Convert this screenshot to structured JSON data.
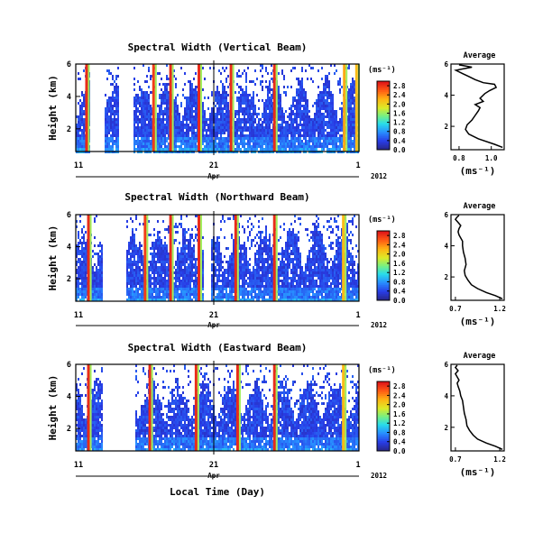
{
  "chart_data": [
    {
      "type": "heatmap",
      "title": "Spectral Width (Vertical Beam)",
      "ylabel": "Height (km)",
      "yticks": [
        "2",
        "4",
        "6"
      ],
      "ylim": [
        0.6,
        6
      ],
      "xtick_labels": [
        "11",
        "21",
        "1"
      ],
      "x_month": "Apr",
      "x_year": "2012",
      "colorbar": {
        "unit": "(ms⁻¹)",
        "ticks": [
          "0.0",
          "0.4",
          "0.8",
          "1.2",
          "1.6",
          "2.0",
          "2.4",
          "2.8"
        ],
        "range": [
          0,
          3.0
        ]
      },
      "gap_days": [
        1,
        2,
        3,
        4
      ],
      "spikes": [
        {
          "day": 1,
          "value": 2.9
        },
        {
          "day": 8.1,
          "value": 2.8
        },
        {
          "day": 9.9,
          "value": 2.9
        },
        {
          "day": 12.9,
          "value": 2.9
        },
        {
          "day": 16.3,
          "value": 2.9
        },
        {
          "day": 20.9,
          "value": 2.9
        },
        {
          "day": 28.3,
          "value": 2.3
        },
        {
          "day": 29.6,
          "value": 2.2
        }
      ]
    },
    {
      "type": "heatmap",
      "title": "Spectral Width (Northward Beam)",
      "ylabel": "Height (km)",
      "yticks": [
        "2",
        "4",
        "6"
      ],
      "ylim": [
        0.6,
        6
      ],
      "xtick_labels": [
        "11",
        "21",
        "1"
      ],
      "x_month": "Apr",
      "x_year": "2012",
      "colorbar": {
        "unit": "(ms⁻¹)",
        "ticks": [
          "0.0",
          "0.4",
          "0.8",
          "1.2",
          "1.6",
          "2.0",
          "2.4",
          "2.8"
        ],
        "range": [
          0,
          3.0
        ]
      },
      "gap_days": [
        1.8,
        3.5,
        9,
        9.5
      ],
      "spikes": [
        {
          "day": 1.2,
          "value": 2.9
        },
        {
          "day": 7.2,
          "value": 2.8
        },
        {
          "day": 9.9,
          "value": 2.9
        },
        {
          "day": 12.9,
          "value": 2.9
        },
        {
          "day": 16.8,
          "value": 2.9
        },
        {
          "day": 20.9,
          "value": 2.9
        },
        {
          "day": 28.2,
          "value": 2.2
        }
      ]
    },
    {
      "type": "heatmap",
      "title": "Spectral Width (Eastward Beam)",
      "ylabel": "Height (km)",
      "yticks": [
        "2",
        "4",
        "6"
      ],
      "ylim": [
        0.6,
        6
      ],
      "xtick_labels": [
        "11",
        "21",
        "1"
      ],
      "x_month": "Apr",
      "x_year": "2012",
      "xlabel": "Local Time (Day)",
      "colorbar": {
        "unit": "(ms⁻¹)",
        "ticks": [
          "0.0",
          "0.4",
          "0.8",
          "1.2",
          "1.6",
          "2.0",
          "2.4",
          "2.8"
        ],
        "range": [
          0,
          3.0
        ]
      },
      "gap_days": [
        1.8,
        4.2
      ],
      "spikes": [
        {
          "day": 1.2,
          "value": 2.9
        },
        {
          "day": 7.7,
          "value": 2.9
        },
        {
          "day": 12.6,
          "value": 2.9
        },
        {
          "day": 17.0,
          "value": 2.9
        },
        {
          "day": 20.9,
          "value": 2.9
        },
        {
          "day": 28.2,
          "value": 2.2
        }
      ]
    },
    {
      "type": "line",
      "title": "Average",
      "xlabel": "(ms⁻¹)",
      "xticks": [
        "0.8",
        "1.0"
      ],
      "xlim": [
        0.75,
        1.08
      ],
      "yticks": [
        "2",
        "4",
        "6"
      ],
      "ylim": [
        0.5,
        6
      ],
      "x": [
        1.07,
        1.02,
        0.92,
        0.86,
        0.84,
        0.85,
        0.88,
        0.9,
        0.92,
        0.93,
        0.9,
        0.95,
        0.93,
        0.96,
        0.99,
        1.03,
        1.02,
        0.95,
        0.9,
        0.86,
        0.82,
        0.78,
        0.88,
        0.8
      ],
      "y": [
        0.65,
        0.85,
        1.2,
        1.5,
        1.8,
        2.1,
        2.4,
        2.7,
        3.0,
        3.2,
        3.4,
        3.6,
        3.8,
        4.1,
        4.3,
        4.5,
        4.7,
        4.8,
        5.0,
        5.2,
        5.4,
        5.6,
        5.8,
        5.95
      ]
    },
    {
      "type": "line",
      "title": "Average",
      "xlabel": "(ms⁻¹)",
      "xticks": [
        "0.7",
        "1.2"
      ],
      "xlim": [
        0.65,
        1.25
      ],
      "yticks": [
        "2",
        "4",
        "6"
      ],
      "ylim": [
        0.5,
        6
      ],
      "x": [
        1.23,
        1.15,
        1.05,
        0.95,
        0.88,
        0.84,
        0.81,
        0.8,
        0.82,
        0.81,
        0.79,
        0.78,
        0.78,
        0.76,
        0.74,
        0.73,
        0.74,
        0.76,
        0.73,
        0.7,
        0.72,
        0.74
      ],
      "y": [
        0.6,
        0.8,
        1.0,
        1.25,
        1.5,
        1.8,
        2.1,
        2.4,
        2.8,
        3.2,
        3.6,
        4.0,
        4.3,
        4.5,
        4.7,
        4.9,
        5.1,
        5.3,
        5.5,
        5.7,
        5.85,
        5.95
      ]
    },
    {
      "type": "line",
      "title": "Average",
      "xlabel": "(ms⁻¹)",
      "xticks": [
        "0.7",
        "1.2"
      ],
      "xlim": [
        0.65,
        1.25
      ],
      "yticks": [
        "2",
        "4",
        "6"
      ],
      "ylim": [
        0.5,
        6
      ],
      "x": [
        1.23,
        1.15,
        1.05,
        0.95,
        0.9,
        0.86,
        0.83,
        0.82,
        0.8,
        0.79,
        0.78,
        0.76,
        0.75,
        0.73,
        0.72,
        0.74,
        0.72,
        0.7,
        0.73,
        0.7,
        0.72
      ],
      "y": [
        0.6,
        0.8,
        1.0,
        1.25,
        1.5,
        1.8,
        2.1,
        2.5,
        2.9,
        3.3,
        3.7,
        4.0,
        4.3,
        4.6,
        4.8,
        5.0,
        5.2,
        5.4,
        5.6,
        5.8,
        5.95
      ]
    }
  ]
}
